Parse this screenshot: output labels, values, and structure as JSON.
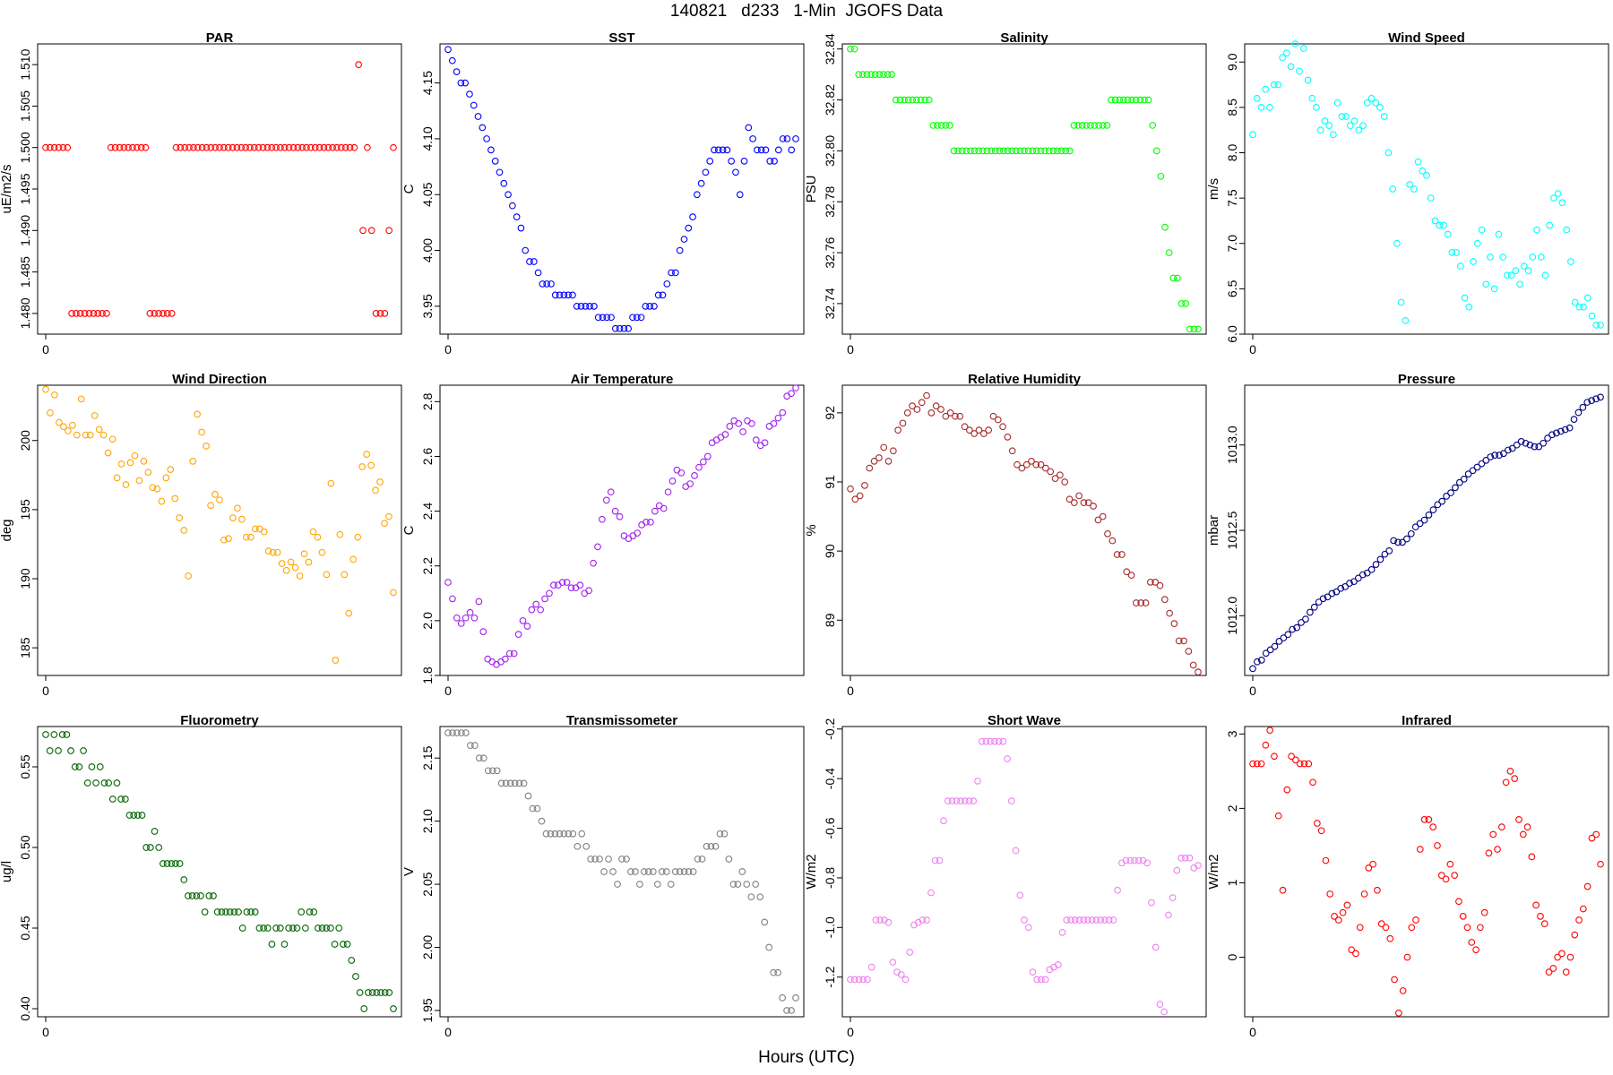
{
  "page": {
    "title": "140821   d233   1-Min  JGOFS Data",
    "xlabel": "Hours (UTC)"
  },
  "chart_data": [
    {
      "type": "scatter",
      "title": "PAR",
      "ylabel": "uE/m2/s",
      "color": "#ff0000",
      "ylim": [
        1.4775,
        1.5125
      ],
      "yticks": [
        1.48,
        1.485,
        1.49,
        1.495,
        1.5,
        1.505,
        1.51
      ],
      "ytick_labels": [
        "1.480",
        "1.485",
        "1.490",
        "1.495",
        "1.500",
        "1.505",
        "1.510"
      ],
      "xticks": [
        0
      ],
      "xtick_labels": [
        "0"
      ],
      "values": [
        1.5,
        1.5,
        1.5,
        1.5,
        1.5,
        1.5,
        1.48,
        1.48,
        1.48,
        1.48,
        1.48,
        1.48,
        1.48,
        1.48,
        1.48,
        1.5,
        1.5,
        1.5,
        1.5,
        1.5,
        1.5,
        1.5,
        1.5,
        1.5,
        1.48,
        1.48,
        1.48,
        1.48,
        1.48,
        1.48,
        1.5,
        1.5,
        1.5,
        1.5,
        1.5,
        1.5,
        1.5,
        1.5,
        1.5,
        1.5,
        1.5,
        1.5,
        1.5,
        1.5,
        1.5,
        1.5,
        1.5,
        1.5,
        1.5,
        1.5,
        1.5,
        1.5,
        1.5,
        1.5,
        1.5,
        1.5,
        1.5,
        1.5,
        1.5,
        1.5,
        1.5,
        1.5,
        1.5,
        1.5,
        1.5,
        1.5,
        1.5,
        1.5,
        1.5,
        1.5,
        1.5,
        1.5,
        1.51,
        1.49,
        1.5,
        1.49,
        1.48,
        1.48,
        1.48,
        1.49,
        1.5
      ]
    },
    {
      "type": "scatter",
      "title": "SST",
      "ylabel": "C",
      "color": "#0000ff",
      "ylim": [
        3.925,
        4.185
      ],
      "yticks": [
        3.95,
        4.0,
        4.05,
        4.1,
        4.15
      ],
      "ytick_labels": [
        "3.95",
        "4.00",
        "4.05",
        "4.10",
        "4.15"
      ],
      "xticks": [
        0
      ],
      "xtick_labels": [
        "0"
      ],
      "values": [
        4.18,
        4.17,
        4.16,
        4.15,
        4.15,
        4.14,
        4.13,
        4.12,
        4.11,
        4.1,
        4.09,
        4.08,
        4.07,
        4.06,
        4.05,
        4.04,
        4.03,
        4.02,
        4.0,
        3.99,
        3.99,
        3.98,
        3.97,
        3.97,
        3.97,
        3.96,
        3.96,
        3.96,
        3.96,
        3.96,
        3.95,
        3.95,
        3.95,
        3.95,
        3.95,
        3.94,
        3.94,
        3.94,
        3.94,
        3.93,
        3.93,
        3.93,
        3.93,
        3.94,
        3.94,
        3.94,
        3.95,
        3.95,
        3.95,
        3.96,
        3.96,
        3.97,
        3.98,
        3.98,
        4.0,
        4.01,
        4.02,
        4.03,
        4.05,
        4.06,
        4.07,
        4.08,
        4.09,
        4.09,
        4.09,
        4.09,
        4.08,
        4.07,
        4.05,
        4.08,
        4.11,
        4.1,
        4.09,
        4.09,
        4.09,
        4.08,
        4.08,
        4.09,
        4.1,
        4.1,
        4.09,
        4.1
      ]
    },
    {
      "type": "scatter",
      "title": "Salinity",
      "ylabel": "PSU",
      "color": "#00ff00",
      "ylim": [
        32.728,
        32.842
      ],
      "yticks": [
        32.74,
        32.76,
        32.78,
        32.8,
        32.82,
        32.84
      ],
      "ytick_labels": [
        "32.74",
        "32.76",
        "32.78",
        "32.80",
        "32.82",
        "32.84"
      ],
      "xticks": [
        0
      ],
      "xtick_labels": [
        "0"
      ],
      "values": [
        32.84,
        32.84,
        32.83,
        32.83,
        32.83,
        32.83,
        32.83,
        32.83,
        32.83,
        32.83,
        32.83,
        32.82,
        32.82,
        32.82,
        32.82,
        32.82,
        32.82,
        32.82,
        32.82,
        32.82,
        32.81,
        32.81,
        32.81,
        32.81,
        32.81,
        32.8,
        32.8,
        32.8,
        32.8,
        32.8,
        32.8,
        32.8,
        32.8,
        32.8,
        32.8,
        32.8,
        32.8,
        32.8,
        32.8,
        32.8,
        32.8,
        32.8,
        32.8,
        32.8,
        32.8,
        32.8,
        32.8,
        32.8,
        32.8,
        32.8,
        32.8,
        32.8,
        32.8,
        32.8,
        32.81,
        32.81,
        32.81,
        32.81,
        32.81,
        32.81,
        32.81,
        32.81,
        32.81,
        32.82,
        32.82,
        32.82,
        32.82,
        32.82,
        32.82,
        32.82,
        32.82,
        32.82,
        32.82,
        32.81,
        32.8,
        32.79,
        32.77,
        32.76,
        32.75,
        32.75,
        32.74,
        32.74,
        32.73,
        32.73,
        32.73
      ]
    },
    {
      "type": "scatter",
      "title": "Wind Speed",
      "ylabel": "m/s",
      "color": "#00ffff",
      "ylim": [
        6.0,
        9.2
      ],
      "yticks": [
        6.0,
        6.5,
        7.0,
        7.5,
        8.0,
        8.5,
        9.0
      ],
      "ytick_labels": [
        "6.0",
        "6.5",
        "7.0",
        "7.5",
        "8.0",
        "8.5",
        "9.0"
      ],
      "xticks": [
        0
      ],
      "xtick_labels": [
        "0"
      ],
      "values": [
        8.2,
        8.6,
        8.5,
        8.7,
        8.5,
        8.75,
        8.75,
        9.05,
        9.1,
        8.95,
        9.2,
        8.9,
        9.15,
        8.8,
        8.6,
        8.5,
        8.25,
        8.35,
        8.3,
        8.2,
        8.55,
        8.4,
        8.4,
        8.3,
        8.35,
        8.25,
        8.3,
        8.55,
        8.6,
        8.55,
        8.5,
        8.4,
        8.0,
        7.6,
        7.0,
        6.35,
        6.15,
        7.65,
        7.6,
        7.9,
        7.8,
        7.75,
        7.5,
        7.25,
        7.2,
        7.2,
        7.1,
        6.9,
        6.9,
        6.75,
        6.4,
        6.3,
        6.8,
        7.0,
        7.15,
        6.55,
        6.85,
        6.5,
        7.1,
        6.85,
        6.65,
        6.65,
        6.7,
        6.55,
        6.75,
        6.7,
        6.85,
        7.15,
        6.85,
        6.65,
        7.2,
        7.5,
        7.55,
        7.45,
        7.15,
        6.8,
        6.35,
        6.3,
        6.3,
        6.4,
        6.2,
        6.1,
        6.1
      ]
    },
    {
      "type": "scatter",
      "title": "Wind Direction",
      "ylabel": "deg",
      "color": "#ffa500",
      "ylim": [
        183,
        204
      ],
      "yticks": [
        185,
        190,
        195,
        200
      ],
      "ytick_labels": [
        "185",
        "190",
        "195",
        "200"
      ],
      "xticks": [
        0
      ],
      "xtick_labels": [
        "0"
      ],
      "values": [
        203.7,
        202.0,
        203.3,
        201.3,
        201.0,
        200.7,
        201.1,
        200.4,
        203.0,
        200.4,
        200.4,
        201.8,
        200.8,
        200.4,
        199.1,
        200.1,
        197.3,
        198.3,
        196.8,
        198.4,
        198.9,
        197.1,
        198.5,
        197.7,
        196.6,
        196.5,
        195.6,
        197.3,
        197.9,
        195.8,
        194.4,
        193.5,
        190.2,
        198.5,
        201.9,
        200.6,
        199.6,
        195.3,
        196.1,
        195.7,
        192.8,
        192.9,
        194.4,
        195.1,
        194.3,
        193.0,
        193.0,
        193.6,
        193.6,
        193.4,
        192.0,
        191.9,
        191.9,
        191.1,
        190.6,
        191.2,
        190.8,
        190.2,
        191.8,
        191.2,
        193.4,
        193.0,
        191.9,
        190.3,
        196.9,
        184.1,
        193.2,
        190.3,
        187.5,
        191.4,
        193.0,
        198.1,
        199.0,
        198.2,
        196.4,
        197.0,
        194.0,
        194.5,
        189.0
      ]
    },
    {
      "type": "scatter",
      "title": "Air Temperature",
      "ylabel": "C",
      "color": "#a020f0",
      "ylim": [
        1.8,
        2.86
      ],
      "yticks": [
        1.8,
        2.0,
        2.2,
        2.4,
        2.6,
        2.8
      ],
      "ytick_labels": [
        "1.8",
        "2.0",
        "2.2",
        "2.4",
        "2.6",
        "2.8"
      ],
      "xticks": [
        0
      ],
      "xtick_labels": [
        "0"
      ],
      "values": [
        2.14,
        2.08,
        2.01,
        1.99,
        2.01,
        2.03,
        2.01,
        2.07,
        1.96,
        1.86,
        1.85,
        1.84,
        1.85,
        1.86,
        1.88,
        1.88,
        1.95,
        2.0,
        1.98,
        2.04,
        2.06,
        2.04,
        2.08,
        2.1,
        2.13,
        2.13,
        2.14,
        2.14,
        2.12,
        2.12,
        2.13,
        2.1,
        2.11,
        2.21,
        2.27,
        2.37,
        2.44,
        2.47,
        2.4,
        2.38,
        2.31,
        2.3,
        2.31,
        2.32,
        2.35,
        2.36,
        2.36,
        2.4,
        2.42,
        2.41,
        2.47,
        2.51,
        2.55,
        2.54,
        2.49,
        2.5,
        2.53,
        2.56,
        2.58,
        2.6,
        2.65,
        2.66,
        2.67,
        2.68,
        2.71,
        2.73,
        2.72,
        2.69,
        2.73,
        2.72,
        2.66,
        2.64,
        2.65,
        2.71,
        2.72,
        2.74,
        2.76,
        2.82,
        2.83,
        2.85
      ]
    },
    {
      "type": "scatter",
      "title": "Relative Humidity",
      "ylabel": "%",
      "color": "#a52a2a",
      "ylim": [
        88.2,
        92.4
      ],
      "yticks": [
        89,
        90,
        91,
        92
      ],
      "ytick_labels": [
        "89",
        "90",
        "91",
        "92"
      ],
      "xticks": [
        0
      ],
      "xtick_labels": [
        "0"
      ],
      "values": [
        90.9,
        90.75,
        90.8,
        90.95,
        91.2,
        91.3,
        91.35,
        91.5,
        91.3,
        91.45,
        91.75,
        91.85,
        92.0,
        92.1,
        92.05,
        92.15,
        92.25,
        92.0,
        92.1,
        92.05,
        91.95,
        92.0,
        91.95,
        91.95,
        91.8,
        91.75,
        91.7,
        91.75,
        91.7,
        91.75,
        91.95,
        91.9,
        91.8,
        91.65,
        91.45,
        91.25,
        91.2,
        91.25,
        91.3,
        91.25,
        91.25,
        91.2,
        91.15,
        91.05,
        91.1,
        91.0,
        90.75,
        90.7,
        90.8,
        90.7,
        90.7,
        90.65,
        90.45,
        90.5,
        90.25,
        90.15,
        89.95,
        89.95,
        89.7,
        89.65,
        89.25,
        89.25,
        89.25,
        89.55,
        89.55,
        89.5,
        89.3,
        89.1,
        88.95,
        88.7,
        88.7,
        88.55,
        88.35,
        88.25
      ]
    },
    {
      "type": "scatter",
      "title": "Pressure",
      "ylabel": "mbar",
      "color": "#000080",
      "ylim": [
        1011.65,
        1013.35
      ],
      "yticks": [
        1012.0,
        1012.5,
        1013.0
      ],
      "ytick_labels": [
        "1012.0",
        "1012.5",
        "1013.0"
      ],
      "xticks": [
        0
      ],
      "xtick_labels": [
        "0"
      ],
      "values": [
        1011.69,
        1011.73,
        1011.74,
        1011.78,
        1011.8,
        1011.82,
        1011.85,
        1011.87,
        1011.89,
        1011.92,
        1011.93,
        1011.96,
        1011.98,
        1012.02,
        1012.05,
        1012.08,
        1012.1,
        1012.11,
        1012.13,
        1012.14,
        1012.16,
        1012.17,
        1012.19,
        1012.2,
        1012.22,
        1012.24,
        1012.25,
        1012.27,
        1012.3,
        1012.33,
        1012.36,
        1012.38,
        1012.44,
        1012.43,
        1012.43,
        1012.45,
        1012.48,
        1012.52,
        1012.54,
        1012.56,
        1012.59,
        1012.62,
        1012.65,
        1012.67,
        1012.7,
        1012.72,
        1012.75,
        1012.78,
        1012.8,
        1012.83,
        1012.85,
        1012.87,
        1012.89,
        1012.91,
        1012.93,
        1012.94,
        1012.94,
        1012.95,
        1012.97,
        1012.98,
        1013.0,
        1013.02,
        1013.01,
        1013.0,
        1012.99,
        1012.99,
        1013.01,
        1013.04,
        1013.06,
        1013.07,
        1013.08,
        1013.09,
        1013.1,
        1013.15,
        1013.19,
        1013.22,
        1013.25,
        1013.26,
        1013.27,
        1013.28
      ]
    },
    {
      "type": "scatter",
      "title": "Fluorometry",
      "ylabel": "ug/l",
      "color": "#006400",
      "ylim": [
        0.395,
        0.575
      ],
      "yticks": [
        0.4,
        0.45,
        0.5,
        0.55
      ],
      "ytick_labels": [
        "0.40",
        "0.45",
        "0.50",
        "0.55"
      ],
      "xticks": [
        0
      ],
      "xtick_labels": [
        "0"
      ],
      "values": [
        0.57,
        0.56,
        0.57,
        0.56,
        0.57,
        0.57,
        0.56,
        0.55,
        0.55,
        0.56,
        0.54,
        0.55,
        0.54,
        0.55,
        0.54,
        0.54,
        0.53,
        0.54,
        0.53,
        0.53,
        0.52,
        0.52,
        0.52,
        0.52,
        0.5,
        0.5,
        0.51,
        0.5,
        0.49,
        0.49,
        0.49,
        0.49,
        0.49,
        0.48,
        0.47,
        0.47,
        0.47,
        0.47,
        0.46,
        0.47,
        0.47,
        0.46,
        0.46,
        0.46,
        0.46,
        0.46,
        0.46,
        0.45,
        0.46,
        0.46,
        0.46,
        0.45,
        0.45,
        0.45,
        0.44,
        0.45,
        0.45,
        0.44,
        0.45,
        0.45,
        0.45,
        0.46,
        0.45,
        0.46,
        0.46,
        0.45,
        0.45,
        0.45,
        0.45,
        0.44,
        0.45,
        0.44,
        0.44,
        0.43,
        0.42,
        0.41,
        0.4,
        0.41,
        0.41,
        0.41,
        0.41,
        0.41,
        0.41,
        0.4
      ]
    },
    {
      "type": "scatter",
      "title": "Transmissometer",
      "ylabel": "V",
      "color": "#808080",
      "ylim": [
        1.945,
        2.175
      ],
      "yticks": [
        1.95,
        2.0,
        2.05,
        2.1,
        2.15
      ],
      "ytick_labels": [
        "1.95",
        "2.00",
        "2.05",
        "2.10",
        "2.15"
      ],
      "xticks": [
        0
      ],
      "xtick_labels": [
        "0"
      ],
      "values": [
        2.17,
        2.17,
        2.17,
        2.17,
        2.17,
        2.16,
        2.16,
        2.15,
        2.15,
        2.14,
        2.14,
        2.14,
        2.13,
        2.13,
        2.13,
        2.13,
        2.13,
        2.13,
        2.12,
        2.11,
        2.11,
        2.1,
        2.09,
        2.09,
        2.09,
        2.09,
        2.09,
        2.09,
        2.09,
        2.08,
        2.09,
        2.08,
        2.07,
        2.07,
        2.07,
        2.06,
        2.07,
        2.06,
        2.05,
        2.07,
        2.07,
        2.06,
        2.06,
        2.05,
        2.06,
        2.06,
        2.06,
        2.05,
        2.06,
        2.06,
        2.05,
        2.06,
        2.06,
        2.06,
        2.06,
        2.06,
        2.07,
        2.07,
        2.08,
        2.08,
        2.08,
        2.09,
        2.09,
        2.07,
        2.05,
        2.05,
        2.06,
        2.05,
        2.04,
        2.05,
        2.04,
        2.02,
        2.0,
        1.98,
        1.98,
        1.96,
        1.95,
        1.95,
        1.96
      ]
    },
    {
      "type": "scatter",
      "title": "Short Wave",
      "ylabel": "W/m2",
      "color": "#ee82ee",
      "ylim": [
        -1.36,
        -0.19
      ],
      "yticks": [
        -1.2,
        -1.0,
        -0.8,
        -0.6,
        -0.4,
        -0.2
      ],
      "ytick_labels": [
        "-1.2",
        "-1.0",
        "-0.8",
        "-0.6",
        "-0.4",
        "-0.2"
      ],
      "xticks": [
        0
      ],
      "xtick_labels": [
        "0"
      ],
      "values": [
        -1.21,
        -1.21,
        -1.21,
        -1.21,
        -1.21,
        -1.16,
        -0.97,
        -0.97,
        -0.97,
        -0.98,
        -1.14,
        -1.18,
        -1.19,
        -1.21,
        -1.1,
        -0.99,
        -0.98,
        -0.97,
        -0.97,
        -0.86,
        -0.73,
        -0.73,
        -0.57,
        -0.49,
        -0.49,
        -0.49,
        -0.49,
        -0.49,
        -0.49,
        -0.49,
        -0.41,
        -0.25,
        -0.25,
        -0.25,
        -0.25,
        -0.25,
        -0.25,
        -0.32,
        -0.49,
        -0.69,
        -0.87,
        -0.97,
        -1.0,
        -1.18,
        -1.21,
        -1.21,
        -1.21,
        -1.17,
        -1.16,
        -1.15,
        -1.02,
        -0.97,
        -0.97,
        -0.97,
        -0.97,
        -0.97,
        -0.97,
        -0.97,
        -0.97,
        -0.97,
        -0.97,
        -0.97,
        -0.97,
        -0.85,
        -0.74,
        -0.73,
        -0.73,
        -0.73,
        -0.73,
        -0.73,
        -0.74,
        -0.9,
        -1.08,
        -1.31,
        -1.34,
        -0.95,
        -0.88,
        -0.77,
        -0.72,
        -0.72,
        -0.72,
        -0.76,
        -0.75
      ]
    },
    {
      "type": "scatter",
      "title": "Infrared",
      "ylabel": "W/m2",
      "color": "#ff0000",
      "ylim": [
        -0.8,
        3.1
      ],
      "yticks": [
        0,
        1,
        2,
        3
      ],
      "ytick_labels": [
        "0",
        "1",
        "2",
        "3"
      ],
      "xticks": [
        0
      ],
      "xtick_labels": [
        "0"
      ],
      "values": [
        2.6,
        2.6,
        2.6,
        2.85,
        3.05,
        2.7,
        1.9,
        0.9,
        2.25,
        2.7,
        2.65,
        2.6,
        2.6,
        2.6,
        2.35,
        1.8,
        1.7,
        1.3,
        0.85,
        0.55,
        0.5,
        0.6,
        0.7,
        0.1,
        0.05,
        0.4,
        0.85,
        1.2,
        1.25,
        0.9,
        0.45,
        0.4,
        0.25,
        -0.3,
        -0.75,
        -0.45,
        0.0,
        0.4,
        0.5,
        1.45,
        1.85,
        1.85,
        1.75,
        1.5,
        1.1,
        1.05,
        1.25,
        1.1,
        0.75,
        0.55,
        0.4,
        0.2,
        0.1,
        0.4,
        0.6,
        1.4,
        1.65,
        1.45,
        1.75,
        2.35,
        2.5,
        2.4,
        1.85,
        1.65,
        1.75,
        1.35,
        0.7,
        0.55,
        0.45,
        -0.2,
        -0.15,
        0.0,
        0.05,
        -0.2,
        0.0,
        0.3,
        0.5,
        0.65,
        0.95,
        1.6,
        1.65,
        1.25
      ]
    }
  ]
}
